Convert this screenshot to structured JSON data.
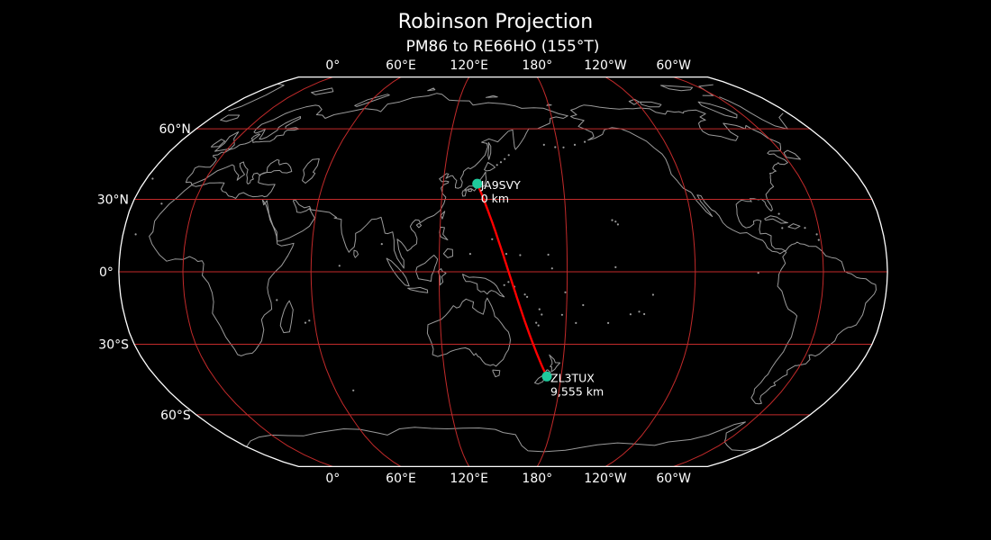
{
  "figure": {
    "title": "Robinson Projection",
    "subtitle": "PM86 to RE66HO (155°T)"
  },
  "chart_data": {
    "type": "map",
    "projection": {
      "name": "Robinson",
      "central_longitude": 150
    },
    "gridlines": {
      "lon_ticks_deg": [
        0,
        60,
        120,
        180,
        -120,
        -60
      ],
      "lon_tick_labels": [
        "0°",
        "60°E",
        "120°E",
        "180°",
        "120°W",
        "60°W"
      ],
      "lat_ticks_deg": [
        60,
        30,
        0,
        -30,
        -60
      ],
      "lat_tick_labels": [
        "60°N",
        "30°N",
        "0°",
        "30°S",
        "60°S"
      ]
    },
    "great_circle_path": {
      "from_grid": "PM86",
      "to_grid": "RE66HO",
      "bearing_label": "155°T",
      "distance_label": "9,555 km"
    },
    "markers": [
      {
        "callsign": "JA9SVY",
        "grid": "PM86",
        "lat": 36.5,
        "lon": 137.0,
        "distance_label": "0 km"
      },
      {
        "callsign": "ZL3TUX",
        "grid": "RE66HO",
        "lat": -43.4,
        "lon": 172.625,
        "distance_label": "9,555 km"
      }
    ],
    "colors": {
      "background": "#000000",
      "text": "#ffffff",
      "graticule": "#c22a2a",
      "coastline": "#9a9a9a",
      "map_outline": "#ffffff",
      "great_circle": "#ff0000",
      "marker": "#1fca9c"
    }
  }
}
